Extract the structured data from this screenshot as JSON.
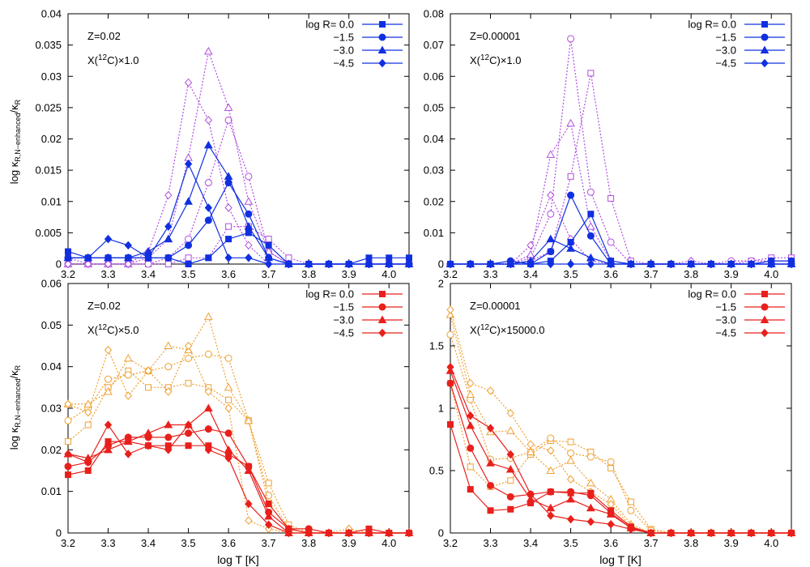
{
  "figure": {
    "ylabel_main": "log κ",
    "ylabel_sub": "R,N−enhanced",
    "ylabel_tail": "/κ",
    "ylabel_tail_sub": "R",
    "xlabel": "log T [K]",
    "legend_title": "log R=",
    "legend_entries": [
      "0.0",
      "−1.5",
      "−3.0",
      "−4.5"
    ],
    "colors": {
      "blue": "#1030e0",
      "purple": "#b04ce0",
      "red": "#e8201c",
      "orange": "#f0a030"
    }
  },
  "chart_data": [
    {
      "type": "line",
      "id": "tl",
      "annot_z": "Z=0.02",
      "annot_x": "X(<sup>12</sup>C)×1.0",
      "xlim": [
        3.2,
        4.05
      ],
      "ylim": [
        0,
        0.04
      ],
      "yticks": [
        "0",
        "0.005",
        "0.01",
        "0.015",
        "0.02",
        "0.025",
        "0.03",
        "0.035",
        "0.04"
      ],
      "xticks": [
        "3.2",
        "3.3",
        "3.4",
        "3.5",
        "3.6",
        "3.7",
        "3.8",
        "3.9",
        "4.0"
      ],
      "main_color": "blue",
      "alt_color": "purple",
      "x": [
        3.2,
        3.25,
        3.3,
        3.35,
        3.4,
        3.45,
        3.5,
        3.55,
        3.6,
        3.65,
        3.7,
        3.75,
        3.8,
        3.85,
        3.9,
        3.95,
        4.0,
        4.05
      ],
      "series": [
        {
          "name": "0.0",
          "marker": "square",
          "values": [
            0.002,
            0.001,
            0.001,
            0.001,
            0.001,
            0.001,
            0.0,
            0.001,
            0.004,
            0.005,
            0.003,
            0.0,
            0.0,
            0.0,
            0.0,
            0.001,
            0.001,
            0.001
          ]
        },
        {
          "name": "−1.5",
          "marker": "circle",
          "values": [
            0.001,
            0.001,
            0.001,
            0.001,
            0.001,
            0.001,
            0.003,
            0.007,
            0.013,
            0.008,
            0.001,
            0.0,
            0.0,
            0.0,
            0.0,
            0.0,
            0.0,
            0.0
          ]
        },
        {
          "name": "−3.0",
          "marker": "triangle",
          "values": [
            0.001,
            0.001,
            0.001,
            0.001,
            0.002,
            0.004,
            0.01,
            0.019,
            0.014,
            0.006,
            0.001,
            0.0,
            0.0,
            0.0,
            0.0,
            0.0,
            0.0,
            0.0
          ]
        },
        {
          "name": "−4.5",
          "marker": "diamond",
          "values": [
            0.001,
            0.001,
            0.004,
            0.003,
            0.001,
            0.006,
            0.016,
            0.009,
            0.001,
            0.001,
            0.0,
            0.0,
            0.0,
            0.0,
            0.0,
            0.0,
            0.0,
            0.0
          ]
        },
        {
          "name": "alt 0.0",
          "marker": "square",
          "alt": true,
          "values": [
            0.001,
            0.0,
            0.0,
            0.0,
            0.0,
            0.0,
            0.001,
            0.001,
            0.006,
            0.006,
            0.004,
            0.001,
            0.0,
            0.0,
            0.0,
            0.0,
            0.0,
            0.0
          ]
        },
        {
          "name": "alt −1.5",
          "marker": "circle",
          "alt": true,
          "values": [
            0.0,
            0.0,
            0.0,
            0.0,
            0.0,
            0.001,
            0.004,
            0.013,
            0.023,
            0.014,
            0.002,
            0.0,
            0.0,
            0.0,
            0.0,
            0.0,
            0.0,
            0.0
          ]
        },
        {
          "name": "alt −3.0",
          "marker": "triangle",
          "alt": true,
          "values": [
            0.0,
            0.0,
            0.0,
            0.0,
            0.001,
            0.004,
            0.017,
            0.034,
            0.025,
            0.01,
            0.002,
            0.0,
            0.0,
            0.0,
            0.0,
            0.0,
            0.0,
            0.0
          ]
        },
        {
          "name": "alt −4.5",
          "marker": "diamond",
          "alt": true,
          "values": [
            0.0,
            0.0,
            0.0,
            0.0,
            0.002,
            0.011,
            0.029,
            0.023,
            0.009,
            0.003,
            0.0,
            0.0,
            0.0,
            0.0,
            0.0,
            0.0,
            0.0,
            0.0
          ]
        }
      ]
    },
    {
      "type": "line",
      "id": "tr",
      "annot_z": "Z=0.00001",
      "annot_x": "X(<sup>12</sup>C)×1.0",
      "xlim": [
        3.2,
        4.05
      ],
      "ylim": [
        0,
        0.08
      ],
      "yticks": [
        "0",
        "0.01",
        "0.02",
        "0.03",
        "0.04",
        "0.05",
        "0.06",
        "0.07",
        "0.08"
      ],
      "xticks": [
        "3.2",
        "3.3",
        "3.4",
        "3.5",
        "3.6",
        "3.7",
        "3.8",
        "3.9",
        "4.0"
      ],
      "main_color": "blue",
      "alt_color": "purple",
      "x": [
        3.2,
        3.25,
        3.3,
        3.35,
        3.4,
        3.45,
        3.5,
        3.55,
        3.6,
        3.65,
        3.7,
        3.75,
        3.8,
        3.85,
        3.9,
        3.95,
        4.0,
        4.05
      ],
      "series": [
        {
          "name": "0.0",
          "marker": "square",
          "values": [
            0,
            0,
            0,
            0,
            0,
            0.001,
            0.007,
            0.016,
            0.001,
            0,
            0,
            0,
            0,
            0,
            0,
            0,
            0.001,
            0.001
          ]
        },
        {
          "name": "−1.5",
          "marker": "circle",
          "values": [
            0,
            0,
            0,
            0.001,
            0,
            0.004,
            0.022,
            0.009,
            0,
            0,
            0,
            0,
            0,
            0,
            0,
            0,
            0,
            0
          ]
        },
        {
          "name": "−3.0",
          "marker": "triangle",
          "values": [
            0,
            0,
            0,
            0,
            0.001,
            0.008,
            0.005,
            0.002,
            0,
            0,
            0,
            0,
            0,
            0,
            0,
            0,
            0,
            0
          ]
        },
        {
          "name": "−4.5",
          "marker": "diamond",
          "values": [
            0,
            0,
            0,
            0,
            0,
            0,
            0,
            0,
            0,
            0,
            0,
            0,
            0,
            0,
            0,
            0,
            0,
            0
          ]
        },
        {
          "name": "alt 0.0",
          "marker": "square",
          "alt": true,
          "values": [
            0,
            0,
            0,
            0,
            0.001,
            0.004,
            0.028,
            0.061,
            0.021,
            0.001,
            0,
            0,
            0,
            0,
            0,
            0.001,
            0.002,
            0.002
          ]
        },
        {
          "name": "alt −1.5",
          "marker": "circle",
          "alt": true,
          "values": [
            0,
            0,
            0,
            0,
            0.002,
            0.016,
            0.072,
            0.023,
            0.007,
            0,
            0,
            0,
            0,
            0,
            0.001,
            0.001,
            0.001,
            0.001
          ]
        },
        {
          "name": "alt −3.0",
          "marker": "triangle",
          "alt": true,
          "values": [
            0,
            0,
            0,
            0,
            0.003,
            0.035,
            0.045,
            0.012,
            0.001,
            0,
            0,
            0,
            0,
            0,
            0,
            0,
            0,
            0
          ]
        },
        {
          "name": "alt −4.5",
          "marker": "diamond",
          "alt": true,
          "values": [
            0,
            0,
            0,
            0,
            0.006,
            0.022,
            0.008,
            0.001,
            0,
            0,
            0,
            0,
            0.001,
            0,
            0,
            0,
            0.001,
            0.001
          ]
        }
      ]
    },
    {
      "type": "line",
      "id": "bl",
      "annot_z": "Z=0.02",
      "annot_x": "X(<sup>12</sup>C)×5.0",
      "xlim": [
        3.2,
        4.05
      ],
      "ylim": [
        0,
        0.06
      ],
      "yticks": [
        "0",
        "0.01",
        "0.02",
        "0.03",
        "0.04",
        "0.05",
        "0.06"
      ],
      "xticks": [
        "3.2",
        "3.3",
        "3.4",
        "3.5",
        "3.6",
        "3.7",
        "3.8",
        "3.9",
        "4.0"
      ],
      "main_color": "red",
      "alt_color": "orange",
      "x": [
        3.2,
        3.25,
        3.3,
        3.35,
        3.4,
        3.45,
        3.5,
        3.55,
        3.6,
        3.65,
        3.7,
        3.75,
        3.8,
        3.85,
        3.9,
        3.95,
        4.0,
        4.05
      ],
      "series": [
        {
          "name": "0.0",
          "marker": "square",
          "values": [
            0.014,
            0.015,
            0.022,
            0.022,
            0.021,
            0.021,
            0.021,
            0.021,
            0.019,
            0.016,
            0.007,
            0.001,
            0.0,
            0.0,
            0.0,
            0.001,
            0.0,
            0.0
          ]
        },
        {
          "name": "−1.5",
          "marker": "circle",
          "values": [
            0.016,
            0.017,
            0.021,
            0.023,
            0.023,
            0.023,
            0.024,
            0.025,
            0.024,
            0.016,
            0.005,
            0.001,
            0.001,
            0.0,
            0.0,
            0.0,
            0.0,
            0.0
          ]
        },
        {
          "name": "−3.0",
          "marker": "triangle",
          "values": [
            0.019,
            0.018,
            0.02,
            0.022,
            0.024,
            0.026,
            0.026,
            0.03,
            0.02,
            0.015,
            0.004,
            0.0,
            0.0,
            0.0,
            0.0,
            0.0,
            0.0,
            0.0
          ]
        },
        {
          "name": "−4.5",
          "marker": "diamond",
          "values": [
            0.019,
            0.017,
            0.026,
            0.019,
            0.021,
            0.02,
            0.026,
            0.02,
            0.018,
            0.007,
            0.002,
            0.0,
            0.0,
            0.0,
            0.0,
            0.0,
            0.0,
            0.0
          ]
        },
        {
          "name": "alt 0.0",
          "marker": "square",
          "alt": true,
          "values": [
            0.022,
            0.026,
            0.035,
            0.039,
            0.035,
            0.035,
            0.036,
            0.035,
            0.032,
            0.027,
            0.012,
            0.002,
            0.0,
            0.0,
            0.0,
            0.0,
            0.0,
            0.0
          ]
        },
        {
          "name": "alt −1.5",
          "marker": "circle",
          "alt": true,
          "values": [
            0.027,
            0.03,
            0.037,
            0.038,
            0.039,
            0.04,
            0.042,
            0.043,
            0.042,
            0.027,
            0.009,
            0.001,
            0.0,
            0.0,
            0.0,
            0.0,
            0.0,
            0.0
          ]
        },
        {
          "name": "alt −3.0",
          "marker": "triangle",
          "alt": true,
          "values": [
            0.031,
            0.031,
            0.034,
            0.042,
            0.039,
            0.045,
            0.044,
            0.052,
            0.035,
            0.027,
            0.007,
            0.001,
            0.0,
            0.0,
            0.0,
            0.0,
            0.0,
            0.0
          ]
        },
        {
          "name": "alt −4.5",
          "marker": "diamond",
          "alt": true,
          "values": [
            0.031,
            0.029,
            0.044,
            0.033,
            0.039,
            0.034,
            0.045,
            0.034,
            0.03,
            0.003,
            0.001,
            0.0,
            0.0,
            0.0,
            0.001,
            0.0,
            0.0,
            0.0
          ]
        }
      ]
    },
    {
      "type": "line",
      "id": "br",
      "annot_z": "Z=0.00001",
      "annot_x": "X(<sup>12</sup>C)×15000.0",
      "xlim": [
        3.2,
        4.05
      ],
      "ylim": [
        0,
        2
      ],
      "yticks": [
        "0",
        "0.5",
        "1",
        "1.5",
        "2"
      ],
      "xticks": [
        "3.2",
        "3.3",
        "3.4",
        "3.5",
        "3.6",
        "3.7",
        "3.8",
        "3.9",
        "4.0"
      ],
      "main_color": "red",
      "alt_color": "orange",
      "x": [
        3.2,
        3.25,
        3.3,
        3.35,
        3.4,
        3.45,
        3.5,
        3.55,
        3.6,
        3.65,
        3.7,
        3.75,
        3.8,
        3.85,
        3.9,
        3.95,
        4.0,
        4.05
      ],
      "series": [
        {
          "name": "0.0",
          "marker": "square",
          "values": [
            0.87,
            0.35,
            0.18,
            0.19,
            0.24,
            0.33,
            0.32,
            0.32,
            0.18,
            0.05,
            0.0,
            0.0,
            0.0,
            0.0,
            0.0,
            0.0,
            0.0,
            0.0
          ]
        },
        {
          "name": "−1.5",
          "marker": "circle",
          "values": [
            1.2,
            0.68,
            0.38,
            0.29,
            0.31,
            0.33,
            0.33,
            0.3,
            0.16,
            0.04,
            0.0,
            0.0,
            0.0,
            0.0,
            0.0,
            0.0,
            0.0,
            0.0
          ]
        },
        {
          "name": "−3.0",
          "marker": "triangle",
          "values": [
            1.3,
            0.86,
            0.56,
            0.51,
            0.27,
            0.2,
            0.27,
            0.2,
            0.15,
            0.04,
            0.0,
            0.0,
            0.0,
            0.0,
            0.0,
            0.0,
            0.0,
            0.0
          ]
        },
        {
          "name": "−4.5",
          "marker": "diamond",
          "values": [
            1.33,
            0.94,
            0.84,
            0.63,
            0.31,
            0.14,
            0.11,
            0.09,
            0.07,
            0.03,
            0.0,
            0.0,
            0.0,
            0.0,
            0.0,
            0.0,
            0.0,
            0.0
          ]
        },
        {
          "name": "alt 0.0",
          "marker": "square",
          "alt": true,
          "values": [
            1.2,
            0.53,
            0.37,
            0.42,
            0.63,
            0.74,
            0.73,
            0.65,
            0.52,
            0.25,
            0.03,
            0.0,
            0.0,
            0.0,
            0.0,
            0.0,
            0.0,
            0.0
          ]
        },
        {
          "name": "alt −1.5",
          "marker": "circle",
          "alt": true,
          "values": [
            1.59,
            1.07,
            0.59,
            0.6,
            0.65,
            0.76,
            0.64,
            0.61,
            0.57,
            0.18,
            0.02,
            0.0,
            0.0,
            0.0,
            0.0,
            0.0,
            0.0,
            0.0
          ]
        },
        {
          "name": "alt −3.0",
          "marker": "triangle",
          "alt": true,
          "values": [
            1.75,
            1.11,
            0.81,
            0.82,
            0.65,
            0.5,
            0.58,
            0.4,
            0.27,
            0.07,
            0.0,
            0.0,
            0.0,
            0.0,
            0.0,
            0.0,
            0.0,
            0.0
          ]
        },
        {
          "name": "alt −4.5",
          "marker": "diamond",
          "alt": true,
          "values": [
            1.79,
            1.2,
            1.14,
            0.96,
            0.71,
            0.66,
            0.43,
            0.33,
            0.23,
            0.05,
            0.0,
            0.0,
            0.0,
            0.0,
            0.0,
            0.0,
            0.0,
            0.0
          ]
        }
      ]
    }
  ]
}
